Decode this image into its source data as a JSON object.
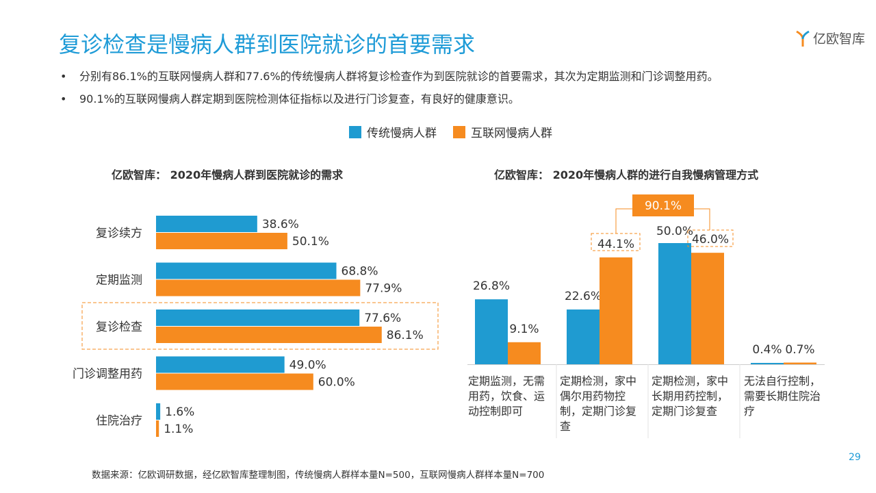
{
  "header": {
    "title": "复诊检查是慢病人群到医院就诊的首要需求",
    "logo_text": "亿欧智库",
    "bullets": [
      "分别有86.1%的互联网慢病人群和77.6%的传统慢病人群将复诊检查作为到医院就诊的首要需求，其次为定期监测和门诊调整用药。",
      "90.1%的互联网慢病人群定期到医院检测体征指标以及进行门诊复查，有良好的健康意识。"
    ]
  },
  "legend": [
    {
      "name": "传统慢病人群",
      "color": "#1f9bd1"
    },
    {
      "name": "互联网慢病人群",
      "color": "#f68b1f"
    }
  ],
  "chart_data": [
    {
      "type": "bar",
      "orientation": "horizontal",
      "title": "亿欧智库：  2020年慢病人群到医院就诊的需求",
      "categories": [
        "复诊续方",
        "定期监测",
        "复诊检查",
        "门诊调整用药",
        "住院治疗"
      ],
      "series": [
        {
          "name": "传统慢病人群",
          "values": [
            38.6,
            68.8,
            77.6,
            49.0,
            1.6
          ]
        },
        {
          "name": "互联网慢病人群",
          "values": [
            50.1,
            77.9,
            86.1,
            60.0,
            1.1
          ]
        }
      ],
      "highlight": "复诊检查",
      "unit": "%"
    },
    {
      "type": "bar",
      "orientation": "vertical",
      "title": "亿欧智库：  2020年慢病人群的进行自我慢病管理方式",
      "categories": [
        "定期监测，无需用药，饮食、运动控制即可",
        "定期检测，家中偶尔用药物控制，定期门诊复查",
        "定期检测，家中长期用药控制，定期门诊复查",
        "无法自行控制，需要长期住院治疗"
      ],
      "series": [
        {
          "name": "传统慢病人群",
          "values": [
            26.8,
            22.6,
            50.0,
            0.4
          ]
        },
        {
          "name": "互联网慢病人群",
          "values": [
            9.1,
            44.1,
            46.0,
            0.7
          ]
        }
      ],
      "annotation": "90.1%",
      "unit": "%"
    }
  ],
  "footer": {
    "source": "数据来源：亿欧调研数据，经亿欧智库整理制图，传统慢病人群样本量N=500，互联网慢病人群样本量N=700",
    "page": "29"
  }
}
